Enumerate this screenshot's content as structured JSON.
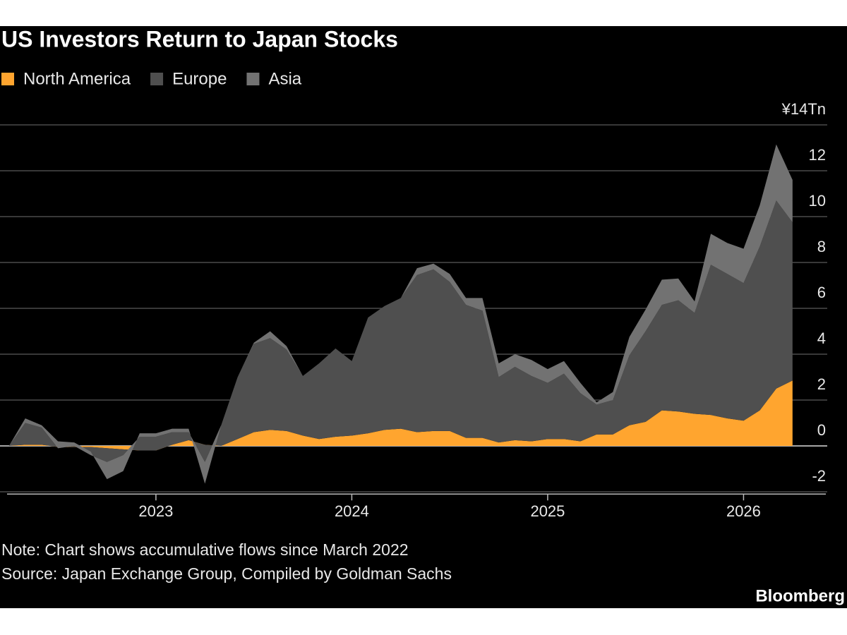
{
  "chart_data": {
    "type": "area",
    "stacked": true,
    "title": "US Investors Return to Japan Stocks",
    "note": "Note: Chart shows accumulative flows since March 2022",
    "source": "Source: Japan Exchange Group, Compiled by Goldman Sachs",
    "credit": "Bloomberg",
    "legend": "top-left",
    "grid": true,
    "x": [
      2022.25,
      2022.333,
      2022.417,
      2022.5,
      2022.583,
      2022.667,
      2022.75,
      2022.833,
      2022.917,
      2023.0,
      2023.083,
      2023.167,
      2023.25,
      2023.333,
      2023.417,
      2023.5,
      2023.583,
      2023.667,
      2023.75,
      2023.833,
      2023.917,
      2024.0,
      2024.083,
      2024.167,
      2024.25,
      2024.333,
      2024.417,
      2024.5,
      2024.583,
      2024.667,
      2024.75,
      2024.833,
      2024.917,
      2025.0,
      2025.083,
      2025.167,
      2025.25,
      2025.333,
      2025.417,
      2025.5,
      2025.583,
      2025.667,
      2025.75,
      2025.833,
      2025.917,
      2026.0,
      2026.083,
      2026.167,
      2026.25
    ],
    "series": [
      {
        "name": "North America",
        "color": "#ffa52f",
        "values": [
          0,
          0.05,
          0.05,
          -0.05,
          -0.05,
          -0.05,
          -0.1,
          -0.15,
          -0.2,
          -0.2,
          0.05,
          0.25,
          0.05,
          0,
          0.3,
          0.6,
          0.7,
          0.65,
          0.45,
          0.3,
          0.4,
          0.45,
          0.55,
          0.7,
          0.75,
          0.6,
          0.65,
          0.65,
          0.35,
          0.35,
          0.15,
          0.25,
          0.2,
          0.3,
          0.3,
          0.2,
          0.5,
          0.5,
          0.9,
          1.05,
          1.55,
          1.5,
          1.4,
          1.35,
          1.2,
          1.1,
          1.55,
          2.5,
          2.85
        ]
      },
      {
        "name": "Europe",
        "color": "#4f4f4f",
        "values": [
          0,
          0.95,
          0.75,
          -0.05,
          0.05,
          -0.35,
          -0.6,
          -0.25,
          0.6,
          0.6,
          0.55,
          0.35,
          -0.75,
          0.9,
          2.7,
          3.85,
          4.0,
          3.55,
          2.6,
          3.3,
          3.85,
          3.25,
          5.05,
          5.4,
          5.7,
          6.85,
          7.05,
          6.5,
          5.8,
          5.55,
          2.85,
          3.2,
          2.85,
          2.45,
          2.85,
          2.1,
          1.3,
          1.5,
          3.05,
          3.95,
          4.6,
          4.85,
          4.4,
          6.55,
          6.3,
          6.0,
          7.15,
          8.2,
          6.9
        ]
      },
      {
        "name": "Asia",
        "color": "#727272",
        "values": [
          0,
          0.2,
          0.1,
          0.3,
          0.15,
          0.15,
          -0.75,
          -0.7,
          0.15,
          0.15,
          0.15,
          0.15,
          -0.95,
          0,
          0,
          0.05,
          0.3,
          0.15,
          0,
          0,
          0,
          0,
          0,
          0,
          0,
          0.3,
          0.25,
          0.35,
          0.3,
          0.55,
          0.6,
          0.55,
          0.7,
          0.6,
          0.55,
          0.45,
          0.1,
          0.35,
          0.8,
          0.95,
          1.1,
          0.95,
          0.5,
          1.35,
          1.35,
          1.5,
          1.8,
          2.45,
          1.85
        ]
      }
    ],
    "xlim": [
      2022.24,
      2026.42
    ],
    "xticks": [
      2023,
      2024,
      2025,
      2026
    ],
    "ylim": [
      -2.1,
      14
    ],
    "yticks": [
      -2,
      0,
      2,
      4,
      6,
      8,
      10,
      12,
      {
        "value": 14,
        "label": "¥14Tn"
      }
    ]
  }
}
